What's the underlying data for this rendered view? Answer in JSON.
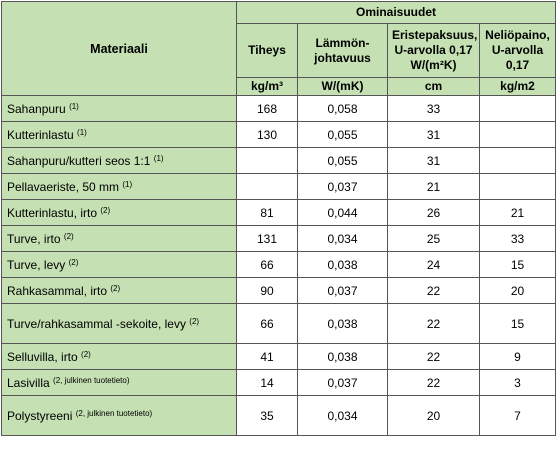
{
  "header": {
    "group_title": "Ominaisuudet",
    "material": "Materiaali",
    "columns": [
      {
        "title": "Tiheys",
        "unit": "kg/m³"
      },
      {
        "title": "Lämmön-johtavuus",
        "unit": "W/(mK)"
      },
      {
        "title": "Eristepaksuus, U-arvolla 0,17 W/(m²K)",
        "unit": "cm"
      },
      {
        "title": "Neliöpaino, U-arvolla 0,17",
        "unit": "kg/m2"
      }
    ]
  },
  "rows": [
    {
      "name": "Sahanpuru",
      "note": "(1)",
      "density": "168",
      "conductivity": "0,058",
      "thickness": "33",
      "weight": ""
    },
    {
      "name": "Kutterinlastu",
      "note": "(1)",
      "density": "130",
      "conductivity": "0,055",
      "thickness": "31",
      "weight": ""
    },
    {
      "name": "Sahanpuru/kutteri seos 1:1",
      "note": "(1)",
      "density": "",
      "conductivity": "0,055",
      "thickness": "31",
      "weight": ""
    },
    {
      "name": "Pellavaeriste, 50 mm",
      "note": "(1)",
      "density": "",
      "conductivity": "0,037",
      "thickness": "21",
      "weight": ""
    },
    {
      "name": "Kutterinlastu, irto",
      "note": "(2)",
      "density": "81",
      "conductivity": "0,044",
      "thickness": "26",
      "weight": "21"
    },
    {
      "name": "Turve, irto",
      "note": "(2)",
      "density": "131",
      "conductivity": "0,034",
      "thickness": "25",
      "weight": "33"
    },
    {
      "name": "Turve, levy",
      "note": "(2)",
      "density": "66",
      "conductivity": "0,038",
      "thickness": "24",
      "weight": "15"
    },
    {
      "name": "Rahkasammal, irto",
      "note": "(2)",
      "density": "90",
      "conductivity": "0,037",
      "thickness": "22",
      "weight": "20"
    },
    {
      "name": "Turve/rahkasammal -sekoite, levy",
      "note": "(2)",
      "density": "66",
      "conductivity": "0,038",
      "thickness": "22",
      "weight": "15"
    },
    {
      "name": "Selluvilla, irto",
      "note": "(2)",
      "density": "41",
      "conductivity": "0,038",
      "thickness": "22",
      "weight": "9"
    },
    {
      "name": "Lasivilla",
      "note": "(2, julkinen tuotetieto)",
      "density": "14",
      "conductivity": "0,037",
      "thickness": "22",
      "weight": "3"
    },
    {
      "name": "Polystyreeni",
      "note": "(2, julkinen tuotetieto)",
      "density": "35",
      "conductivity": "0,034",
      "thickness": "20",
      "weight": "7"
    }
  ]
}
